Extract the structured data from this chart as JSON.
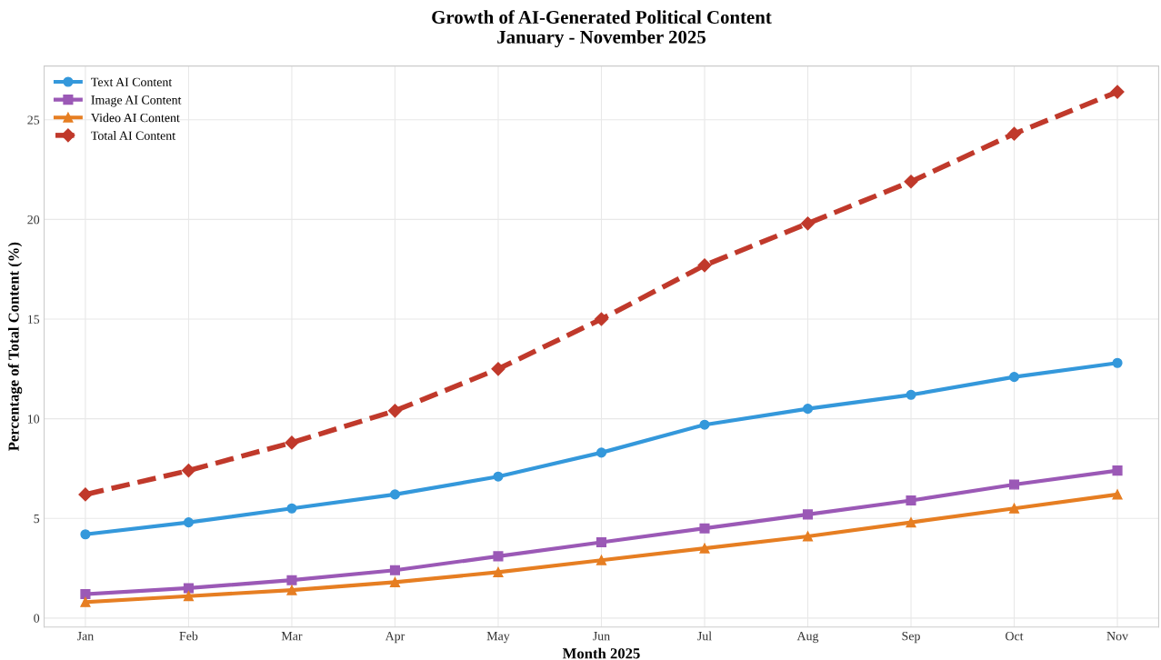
{
  "chart_data": {
    "type": "line",
    "title": "Growth of AI-Generated Political Content\nJanuary - November 2025",
    "xlabel": "Month 2025",
    "ylabel": "Percentage of Total Content (%)",
    "categories": [
      "Jan",
      "Feb",
      "Mar",
      "Apr",
      "May",
      "Jun",
      "Jul",
      "Aug",
      "Sep",
      "Oct",
      "Nov"
    ],
    "series": [
      {
        "name": "Text AI Content",
        "color": "#3498db",
        "marker": "circle",
        "line_style": "solid",
        "values": [
          4.2,
          4.8,
          5.5,
          6.2,
          7.1,
          8.3,
          9.7,
          10.5,
          11.2,
          12.1,
          12.8
        ]
      },
      {
        "name": "Image AI Content",
        "color": "#9b59b6",
        "marker": "square",
        "line_style": "solid",
        "values": [
          1.2,
          1.5,
          1.9,
          2.4,
          3.1,
          3.8,
          4.5,
          5.2,
          5.9,
          6.7,
          7.4
        ]
      },
      {
        "name": "Video AI Content",
        "color": "#e67e22",
        "marker": "triangle",
        "line_style": "solid",
        "values": [
          0.8,
          1.1,
          1.4,
          1.8,
          2.3,
          2.9,
          3.5,
          4.1,
          4.8,
          5.5,
          6.2
        ]
      },
      {
        "name": "Total AI Content",
        "color": "#c0392b",
        "marker": "diamond",
        "line_style": "dashed",
        "values": [
          6.2,
          7.4,
          8.8,
          10.4,
          12.5,
          15.0,
          17.7,
          19.8,
          21.9,
          24.3,
          26.4
        ]
      }
    ],
    "ylim": [
      -0.45,
      27.7
    ],
    "yticks": [
      0,
      5,
      10,
      15,
      20,
      25
    ],
    "grid": true,
    "legend": "top left"
  }
}
